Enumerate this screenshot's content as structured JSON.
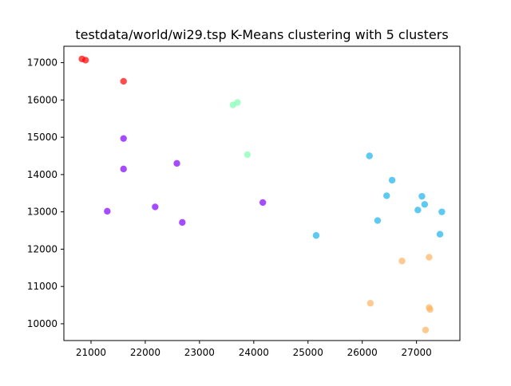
{
  "chart_data": {
    "type": "scatter",
    "title": "testdata/world/wi29.tsp K-Means clustering with 5 clusters",
    "xlabel": "",
    "ylabel": "",
    "xlim": [
      20500,
      27800
    ],
    "ylim": [
      9550,
      17440
    ],
    "xticks": [
      21000,
      22000,
      23000,
      24000,
      25000,
      26000,
      27000
    ],
    "yticks": [
      10000,
      11000,
      12000,
      13000,
      14000,
      15000,
      16000,
      17000
    ],
    "grid": false,
    "legend": "none",
    "colors": [
      "#ff0000",
      "#8000ff",
      "#80ffb4",
      "#1ab2ec",
      "#ffb360"
    ],
    "series": [
      {
        "points": [
          [
            20833,
            17100
          ],
          [
            20900,
            17067
          ],
          [
            21600,
            16500
          ]
        ]
      },
      {
        "points": [
          [
            21600,
            14967
          ],
          [
            21600,
            14150
          ],
          [
            22583,
            14300
          ],
          [
            21300,
            13017
          ],
          [
            22183,
            13133
          ],
          [
            22683,
            12717
          ],
          [
            24167,
            13250
          ]
        ]
      },
      {
        "points": [
          [
            23617,
            15867
          ],
          [
            23700,
            15933
          ],
          [
            23883,
            14533
          ]
        ]
      },
      {
        "points": [
          [
            26133,
            14500
          ],
          [
            26550,
            13850
          ],
          [
            26450,
            13433
          ],
          [
            27100,
            13417
          ],
          [
            27150,
            13200
          ],
          [
            27025,
            13050
          ],
          [
            27467,
            13000
          ],
          [
            26283,
            12767
          ],
          [
            27433,
            12400
          ],
          [
            25150,
            12367
          ]
        ]
      },
      {
        "points": [
          [
            26733,
            11683
          ],
          [
            27233,
            11783
          ],
          [
            26150,
            10550
          ],
          [
            27233,
            10433
          ],
          [
            27250,
            10383
          ],
          [
            27167,
            9833
          ]
        ]
      }
    ]
  }
}
